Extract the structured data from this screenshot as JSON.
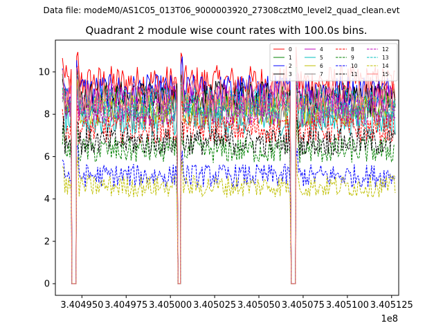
{
  "suptitle": "Data file: modeM0/AS1C05_013T06_9000003920_27308cztM0_level2_quad_clean.evt",
  "chart_data": {
    "type": "line",
    "title": "Quadrant 2 module wise count rates with 100.0s bins.",
    "xlabel": "",
    "ylabel": "",
    "x_offset_label": "1e8",
    "xlim": [
      3.404935,
      3.405129
    ],
    "ylim": [
      -0.55,
      11.5
    ],
    "x_ticks": [
      3.40495,
      3.404975,
      3.405,
      3.405025,
      3.40505,
      3.405075,
      3.4051,
      3.405125
    ],
    "x_tick_labels": [
      "3.404950",
      "3.404975",
      "3.405000",
      "3.405025",
      "3.405050",
      "3.405075",
      "3.405100",
      "3.405125"
    ],
    "y_ticks": [
      0,
      2,
      4,
      6,
      8,
      10
    ],
    "y_tick_labels": [
      "0",
      "2",
      "4",
      "6",
      "8",
      "10"
    ],
    "gaps": [
      [
        3.404944,
        3.404947
      ],
      [
        3.405004,
        3.405006
      ],
      [
        3.405068,
        3.405071
      ]
    ],
    "segments": [
      [
        3.404939,
        3.404944
      ],
      [
        3.404947,
        3.405004
      ],
      [
        3.405006,
        3.405068
      ],
      [
        3.405071,
        3.405127
      ]
    ],
    "legend_position": "upper right, 4 columns",
    "series": [
      {
        "name": "0",
        "color": "#ff0000",
        "dash": "solid",
        "level": 9.5
      },
      {
        "name": "1",
        "color": "#008000",
        "dash": "solid",
        "level": 8.6
      },
      {
        "name": "2",
        "color": "#0000ff",
        "dash": "solid",
        "level": 9.1
      },
      {
        "name": "3",
        "color": "#000000",
        "dash": "solid",
        "level": 8.8
      },
      {
        "name": "4",
        "color": "#bf00bf",
        "dash": "solid",
        "level": 8.7
      },
      {
        "name": "5",
        "color": "#00bfbf",
        "dash": "solid",
        "level": 7.7
      },
      {
        "name": "6",
        "color": "#bfbf00",
        "dash": "solid",
        "level": 8.2
      },
      {
        "name": "7",
        "color": "#808080",
        "dash": "solid",
        "level": 8.0
      },
      {
        "name": "8",
        "color": "#ff0000",
        "dash": "dashed",
        "level": 7.3
      },
      {
        "name": "9",
        "color": "#008000",
        "dash": "dashed",
        "level": 6.3
      },
      {
        "name": "10",
        "color": "#0000ff",
        "dash": "dashed",
        "level": 5.1
      },
      {
        "name": "11",
        "color": "#000000",
        "dash": "dashed",
        "level": 6.7
      },
      {
        "name": "12",
        "color": "#bf00bf",
        "dash": "dashed",
        "level": 8.2
      },
      {
        "name": "13",
        "color": "#00bfbf",
        "dash": "dashed",
        "level": 8.5
      },
      {
        "name": "14",
        "color": "#bfbf00",
        "dash": "dashed",
        "level": 4.6
      },
      {
        "name": "15",
        "color": "#ff7f7f",
        "dash": "solid",
        "level": 8.9
      }
    ]
  }
}
